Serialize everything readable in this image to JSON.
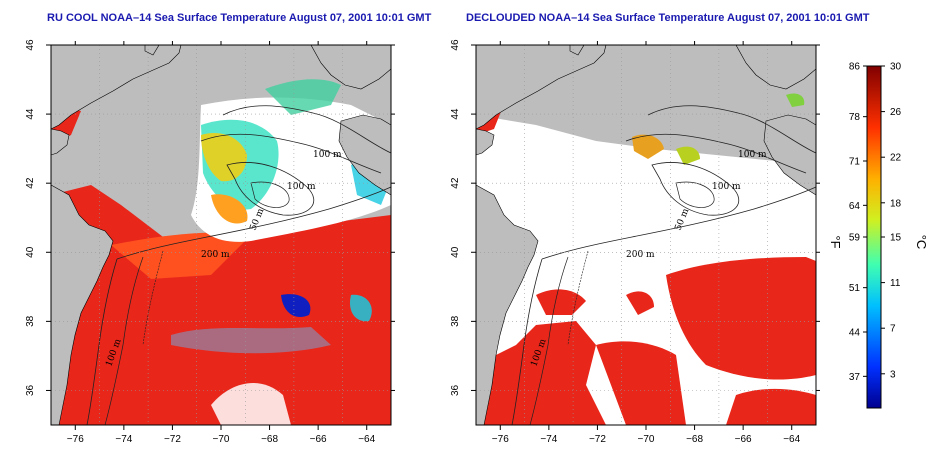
{
  "panels": [
    {
      "title": "RU COOL NOAA–14 Sea Surface Temperature August 07, 2001 10:01 GMT",
      "isobath_labels": [
        "100 m",
        "100 m",
        "50 m",
        "200 m",
        "100 m"
      ]
    },
    {
      "title": "DECLOUDED NOAA–14 Sea Surface Temperature August 07, 2001 10:01 GMT",
      "isobath_labels": [
        "100 m",
        "100 m",
        "50 m",
        "200 m",
        "100 m"
      ]
    }
  ],
  "map_axes": {
    "lon_ticks": [
      "−76",
      "−74",
      "−72",
      "−70",
      "−68",
      "−66",
      "−64"
    ],
    "lat_ticks": [
      "46",
      "44",
      "42",
      "40",
      "38",
      "36"
    ],
    "lon_range": [
      -77,
      -63
    ],
    "lat_range": [
      35,
      46
    ]
  },
  "colorbar": {
    "fahrenheit_ticks": [
      "86",
      "78",
      "71",
      "64",
      "59",
      "51",
      "44",
      "37"
    ],
    "celsius_ticks": [
      "30",
      "26",
      "22",
      "18",
      "15",
      "11",
      "7",
      "3"
    ],
    "fahrenheit_unit": "°F",
    "celsius_unit": "°C",
    "celsius_range": [
      0,
      30
    ]
  },
  "colors": {
    "title": "#1a1ab0",
    "land": "#bdbdbd",
    "warm": "#e8261a",
    "cool": "#1ac8e0",
    "cold": "#1020c0"
  }
}
